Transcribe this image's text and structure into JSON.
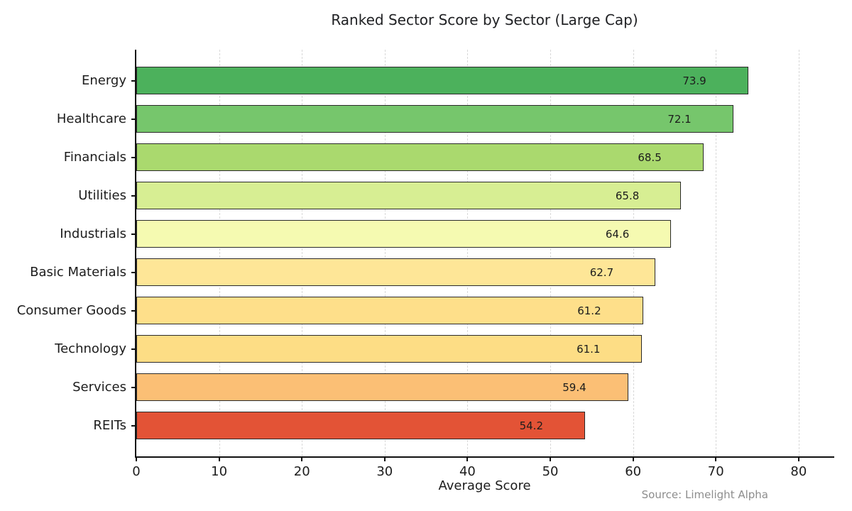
{
  "chart_data": {
    "type": "bar",
    "orientation": "horizontal",
    "title": "Ranked Sector Score by Sector (Large Cap)",
    "xlabel": "Average Score",
    "ylabel": "",
    "source": "Source: Limelight Alpha",
    "categories": [
      "Energy",
      "Healthcare",
      "Financials",
      "Utilities",
      "Industrials",
      "Basic Materials",
      "Consumer Goods",
      "Technology",
      "Services",
      "REITs"
    ],
    "values": [
      73.9,
      72.1,
      68.5,
      65.8,
      64.6,
      62.7,
      61.2,
      61.1,
      59.4,
      54.2
    ],
    "value_labels": [
      "73.9",
      "72.1",
      "68.5",
      "65.8",
      "64.6",
      "62.7",
      "61.2",
      "61.1",
      "59.4",
      "54.2"
    ],
    "bar_colors": [
      "#4cb15c",
      "#76c66c",
      "#aad96e",
      "#d7ee93",
      "#f5fab1",
      "#fee697",
      "#fedf8a",
      "#fddd85",
      "#fbbf75",
      "#e35336"
    ],
    "bar_border_color": "#2a2a2a",
    "xticks": [
      0,
      10,
      20,
      30,
      40,
      50,
      60,
      70,
      80
    ],
    "xlim": [
      0,
      84.3
    ],
    "grid": "dashed-vertical",
    "grid_color": "#d8d8d8",
    "legend": null
  }
}
